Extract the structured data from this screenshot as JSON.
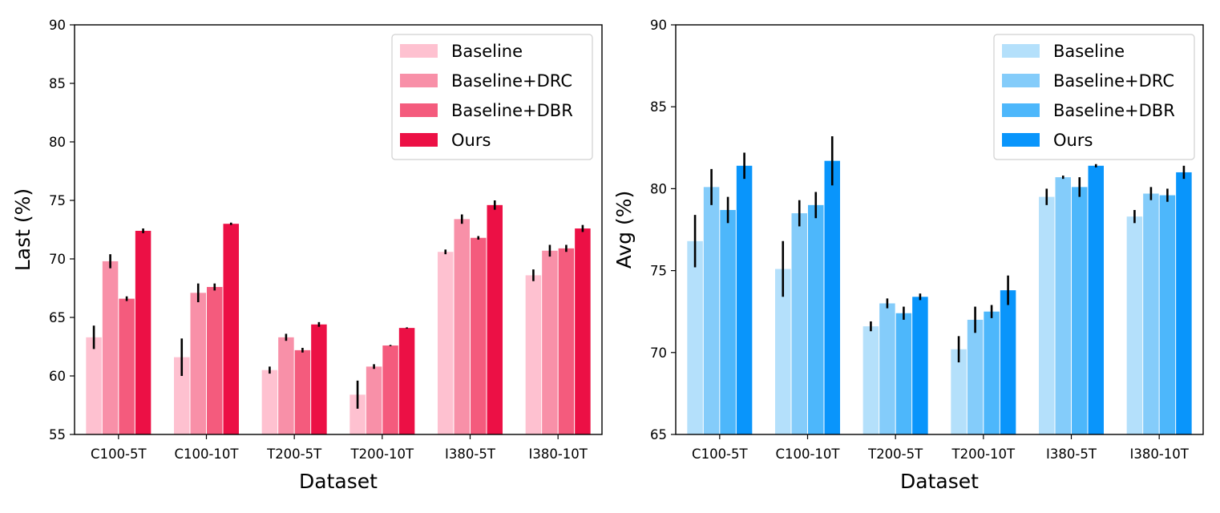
{
  "chart_data": [
    {
      "type": "bar",
      "title": "",
      "xlabel": "Dataset",
      "ylabel": "Last (%)",
      "ylim": [
        55,
        90
      ],
      "yticks": [
        55,
        60,
        65,
        70,
        75,
        80,
        85,
        90
      ],
      "grid": false,
      "legend_position": "top-right",
      "categories": [
        "C100-5T",
        "C100-10T",
        "T200-5T",
        "T200-10T",
        "I380-5T",
        "I380-10T"
      ],
      "series": [
        {
          "name": "Baseline",
          "color": "#fec1d0",
          "values": [
            63.3,
            61.6,
            60.5,
            58.4,
            70.6,
            68.6
          ],
          "errors": [
            1.0,
            1.6,
            0.3,
            1.2,
            0.2,
            0.5
          ]
        },
        {
          "name": "Baseline+DRC",
          "color": "#f890a8",
          "values": [
            69.8,
            67.1,
            63.3,
            60.8,
            73.4,
            70.7
          ],
          "errors": [
            0.6,
            0.8,
            0.3,
            0.2,
            0.4,
            0.5
          ]
        },
        {
          "name": "Baseline+DBR",
          "color": "#f45b7d",
          "values": [
            66.6,
            67.6,
            62.2,
            62.6,
            71.8,
            70.9
          ],
          "errors": [
            0.2,
            0.3,
            0.2,
            0.05,
            0.15,
            0.3
          ]
        },
        {
          "name": "Ours",
          "color": "#ec1045",
          "values": [
            72.4,
            73.0,
            64.4,
            64.1,
            74.6,
            72.6
          ],
          "errors": [
            0.2,
            0.1,
            0.2,
            0.05,
            0.4,
            0.3
          ]
        }
      ]
    },
    {
      "type": "bar",
      "title": "",
      "xlabel": "Dataset",
      "ylabel": "Avg (%)",
      "ylim": [
        65,
        90
      ],
      "yticks": [
        65,
        70,
        75,
        80,
        85,
        90
      ],
      "grid": false,
      "legend_position": "top-right",
      "categories": [
        "C100-5T",
        "C100-10T",
        "T200-5T",
        "T200-10T",
        "I380-5T",
        "I380-10T"
      ],
      "series": [
        {
          "name": "Baseline",
          "color": "#b4e0fb",
          "values": [
            76.8,
            75.1,
            71.6,
            70.2,
            79.5,
            78.3
          ],
          "errors": [
            1.6,
            1.7,
            0.3,
            0.8,
            0.5,
            0.4
          ]
        },
        {
          "name": "Baseline+DRC",
          "color": "#84ccfa",
          "values": [
            80.1,
            78.5,
            73.0,
            72.0,
            80.7,
            79.7
          ],
          "errors": [
            1.1,
            0.8,
            0.3,
            0.8,
            0.1,
            0.4
          ]
        },
        {
          "name": "Baseline+DBR",
          "color": "#4db7fb",
          "values": [
            78.7,
            79.0,
            72.4,
            72.5,
            80.1,
            79.6
          ],
          "errors": [
            0.8,
            0.8,
            0.4,
            0.4,
            0.6,
            0.4
          ]
        },
        {
          "name": "Ours",
          "color": "#0995fb",
          "values": [
            81.4,
            81.7,
            73.4,
            73.8,
            81.4,
            81.0
          ],
          "errors": [
            0.8,
            1.5,
            0.2,
            0.9,
            0.1,
            0.4
          ]
        }
      ]
    }
  ]
}
